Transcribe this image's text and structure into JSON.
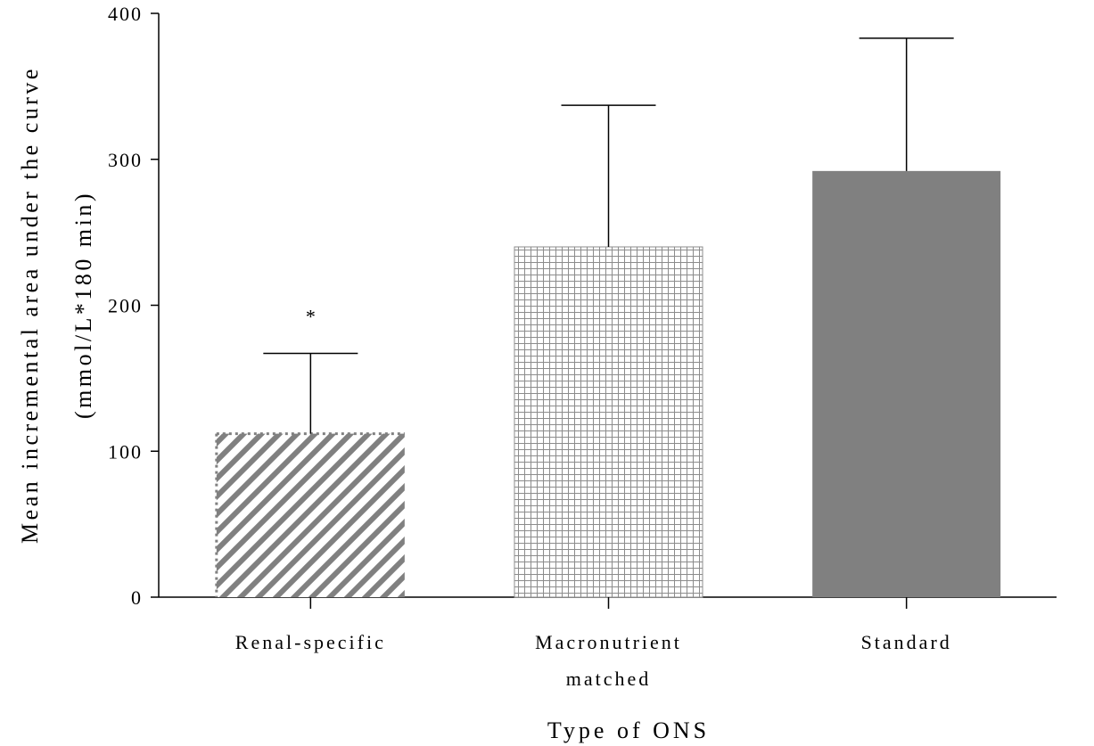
{
  "chart_data": {
    "type": "bar",
    "categories": [
      [
        "Renal-specific"
      ],
      [
        "Macronutrient",
        "matched"
      ],
      [
        "Standard"
      ]
    ],
    "values": [
      112,
      240,
      292
    ],
    "error_upper": [
      167,
      337,
      383
    ],
    "annotations": [
      "*",
      "",
      ""
    ],
    "fills": [
      "diagonal-hatch",
      "grid-hatch",
      "solid"
    ],
    "bar_color": "#808080",
    "ylabel": [
      "Mean incremental area under the curve",
      "(mmol/L*180 min)"
    ],
    "xlabel": "Type of ONS",
    "ylim": [
      0,
      400
    ],
    "yticks": [
      "0",
      "100",
      "200",
      "300",
      "400"
    ],
    "grid": false,
    "legend": "none"
  }
}
